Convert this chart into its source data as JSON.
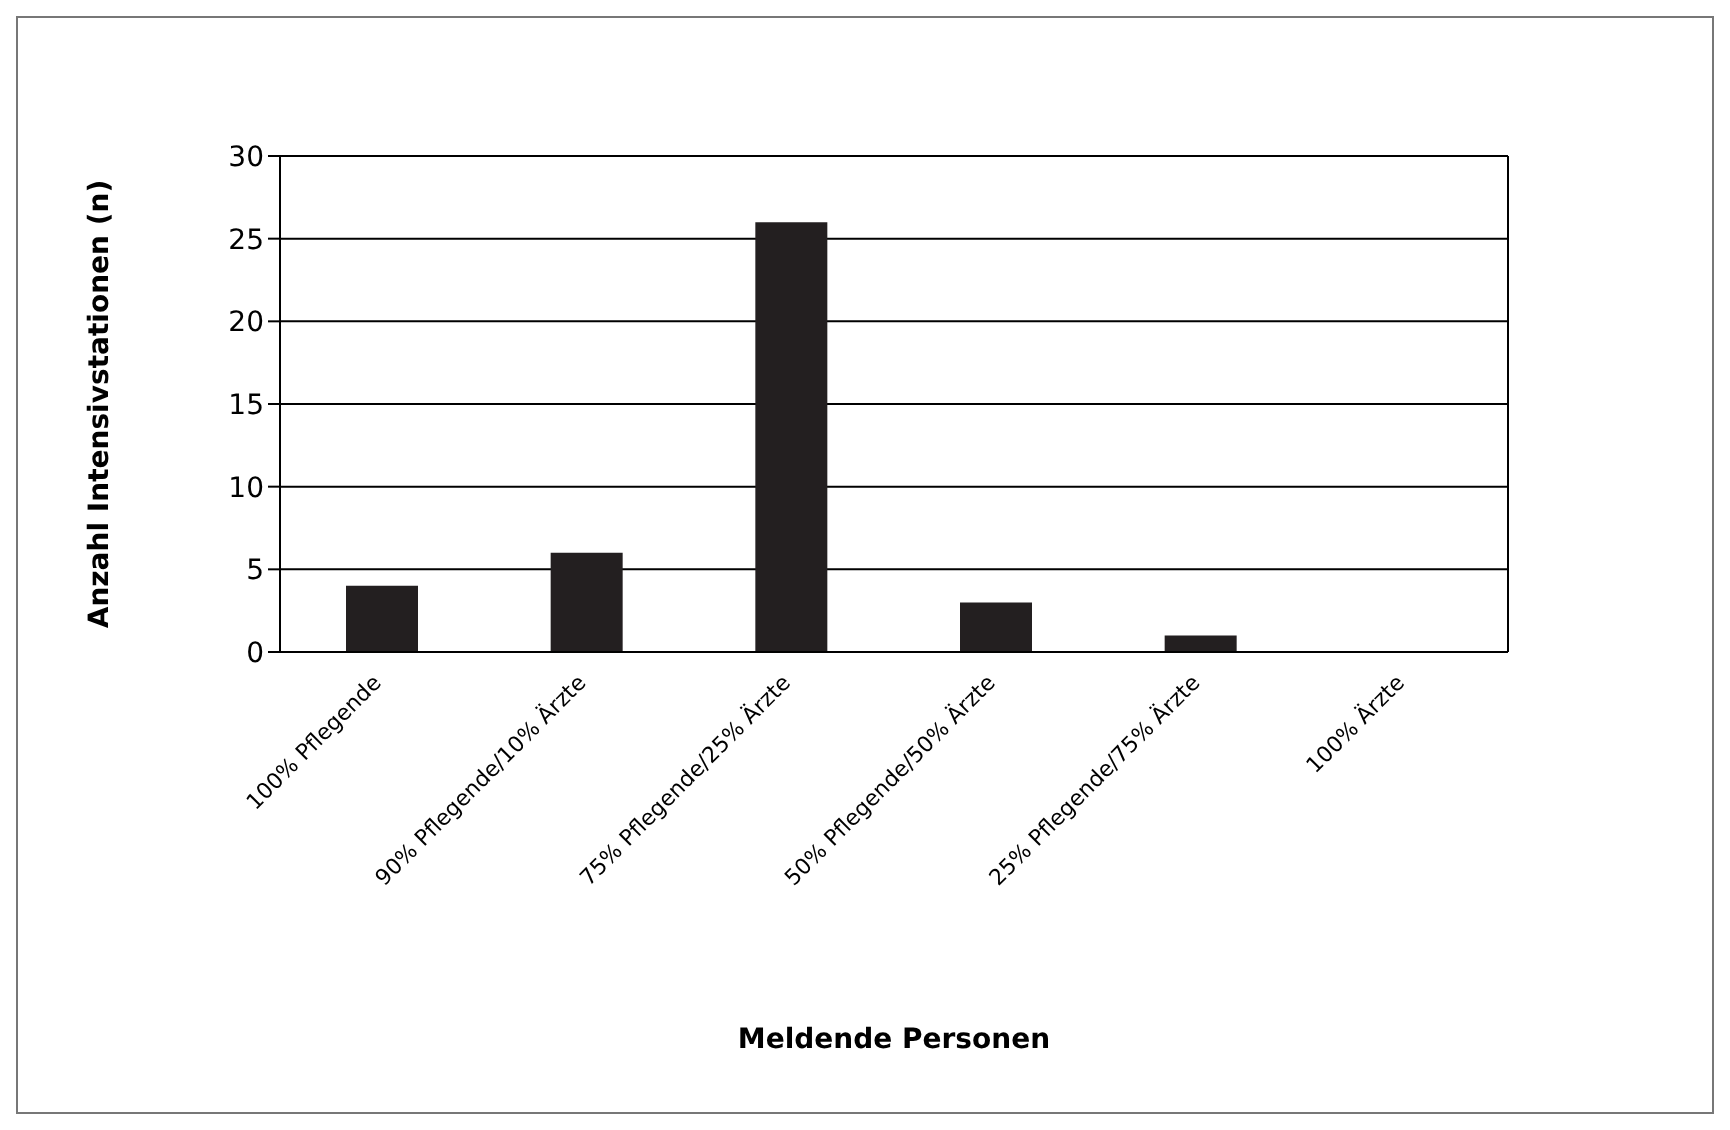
{
  "chart_data": {
    "type": "bar",
    "xlabel": "Meldende Personen",
    "ylabel": "Anzahl Intensivstationen (n)",
    "categories": [
      "100% Pflegende",
      "90% Pflegende/10% Ärzte",
      "75% Pflegende/25% Ärzte",
      "50% Pflegende/50% Ärzte",
      "25% Pflegende/75% Ärzte",
      "100% Ärzte"
    ],
    "values": [
      4,
      6,
      26,
      3,
      1,
      0
    ],
    "color": "#231f20",
    "ylim": [
      0,
      30
    ],
    "yticks": [
      0,
      5,
      10,
      15,
      20,
      25,
      30
    ],
    "grid": "y",
    "legend": false
  }
}
